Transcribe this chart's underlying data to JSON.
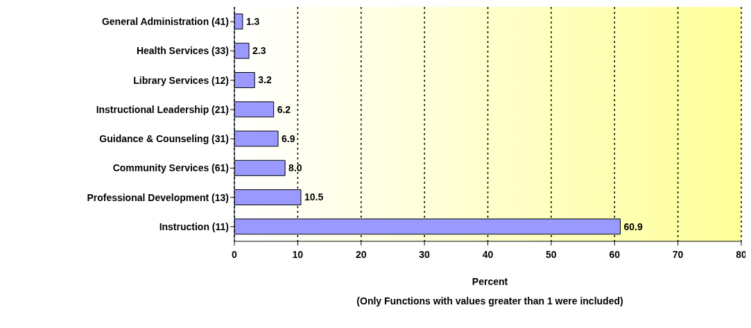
{
  "chart_data": {
    "type": "bar",
    "orientation": "horizontal",
    "xlabel": "Percent",
    "annotations": [
      "(Only Functions with values greater than 1 were included)"
    ],
    "categories": [
      "General Administration (41)",
      "Health Services (33)",
      "Library Services (12)",
      "Instructional Leadership (21)",
      "Guidance & Counseling (31)",
      "Community Services (61)",
      "Professional Development (13)",
      "Instruction (11)"
    ],
    "values": [
      1.3,
      2.3,
      3.2,
      6.2,
      6.9,
      8.0,
      10.5,
      60.9
    ],
    "value_labels": [
      "1.3",
      "2.3",
      "3.2",
      "6.2",
      "6.9",
      "8.0",
      "10.5",
      "60.9"
    ],
    "color": "#9999ff",
    "xlim": [
      0,
      80
    ],
    "xticks": [
      0,
      10,
      20,
      30,
      40,
      50,
      60,
      70,
      80
    ],
    "grid": "x",
    "legend": false
  }
}
